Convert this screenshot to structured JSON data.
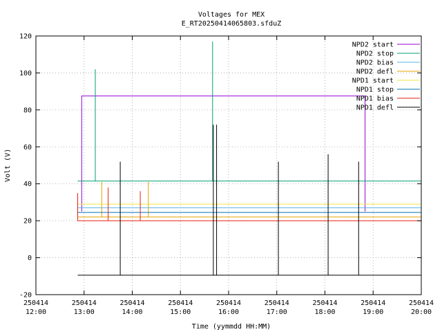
{
  "chart_data": {
    "type": "line",
    "title": "Voltages for MEX",
    "subtitle": "E_RT20250414065803.sfduZ",
    "xlabel": "Time (yymmdd HH:MM)",
    "ylabel": "Volt (V)",
    "xlim": [
      "250414 12:00",
      "250414 20:00"
    ],
    "ylim": [
      -20,
      120
    ],
    "grid": true,
    "legend_position": "top-right",
    "x_ticks": [
      {
        "date": "250414",
        "time": "12:00"
      },
      {
        "date": "250414",
        "time": "13:00"
      },
      {
        "date": "250414",
        "time": "14:00"
      },
      {
        "date": "250414",
        "time": "15:00"
      },
      {
        "date": "250414",
        "time": "16:00"
      },
      {
        "date": "250414",
        "time": "17:00"
      },
      {
        "date": "250414",
        "time": "18:00"
      },
      {
        "date": "250414",
        "time": "19:00"
      },
      {
        "date": "250414",
        "time": "20:00"
      }
    ],
    "y_ticks": [
      -20,
      0,
      20,
      40,
      60,
      80,
      100,
      120
    ],
    "series": [
      {
        "name": "NPD2 start",
        "color": "#9400d3",
        "points": [
          [
            "12:57",
            25
          ],
          [
            "12:57",
            87.5
          ],
          [
            "18:50",
            87.5
          ],
          [
            "18:50",
            25
          ]
        ]
      },
      {
        "name": "NPD2 stop",
        "color": "#009e73",
        "points": [
          [
            "12:52",
            41.5
          ],
          [
            "13:14",
            41.5
          ],
          [
            "13:14",
            102
          ],
          [
            "13:14",
            41.5
          ],
          [
            "15:40",
            41.5
          ],
          [
            "15:40",
            117
          ],
          [
            "15:40",
            41.5
          ],
          [
            "20:00",
            41.5
          ]
        ]
      },
      {
        "name": "NPD2 bias",
        "color": "#56b4e9",
        "points": [
          [
            "12:52",
            27
          ],
          [
            "20:00",
            27
          ]
        ]
      },
      {
        "name": "NPD2 defl",
        "color": "#e69f00",
        "points": [
          [
            "12:52",
            22
          ],
          [
            "13:22",
            22
          ],
          [
            "13:22",
            41
          ],
          [
            "13:22",
            22
          ],
          [
            "14:20",
            22
          ],
          [
            "14:20",
            41
          ],
          [
            "14:20",
            22
          ],
          [
            "20:00",
            22
          ]
        ]
      },
      {
        "name": "NPD1 start",
        "color": "#f0e442",
        "points": [
          [
            "12:52",
            29
          ],
          [
            "20:00",
            29
          ]
        ]
      },
      {
        "name": "NPD1 stop",
        "color": "#0072b2",
        "points": [
          [
            "12:52",
            24.5
          ],
          [
            "20:00",
            24.5
          ]
        ]
      },
      {
        "name": "NPD1 bias",
        "color": "#e51e10",
        "points": [
          [
            "12:52",
            20
          ],
          [
            "12:52",
            35
          ],
          [
            "12:52",
            20
          ],
          [
            "13:30",
            20
          ],
          [
            "13:30",
            38
          ],
          [
            "13:30",
            20
          ],
          [
            "14:10",
            20
          ],
          [
            "14:10",
            36
          ],
          [
            "14:10",
            20
          ],
          [
            "20:00",
            20
          ]
        ]
      },
      {
        "name": "NPD1 defl",
        "color": "#000000",
        "points": [
          [
            "12:52",
            -9.5
          ],
          [
            "13:45",
            -9.5
          ],
          [
            "13:45",
            52
          ],
          [
            "13:45",
            -9.5
          ],
          [
            "15:41",
            -9.5
          ],
          [
            "15:41",
            72
          ],
          [
            "15:41",
            -9.5
          ],
          [
            "15:45",
            -9.5
          ],
          [
            "15:45",
            72
          ],
          [
            "15:45",
            -9.5
          ],
          [
            "17:02",
            -9.5
          ],
          [
            "17:02",
            52
          ],
          [
            "17:02",
            -9.5
          ],
          [
            "18:04",
            -9.5
          ],
          [
            "18:04",
            56
          ],
          [
            "18:04",
            -9.5
          ],
          [
            "18:42",
            -9.5
          ],
          [
            "18:42",
            52
          ],
          [
            "18:42",
            -9.5
          ],
          [
            "20:00",
            -9.5
          ]
        ]
      }
    ]
  }
}
